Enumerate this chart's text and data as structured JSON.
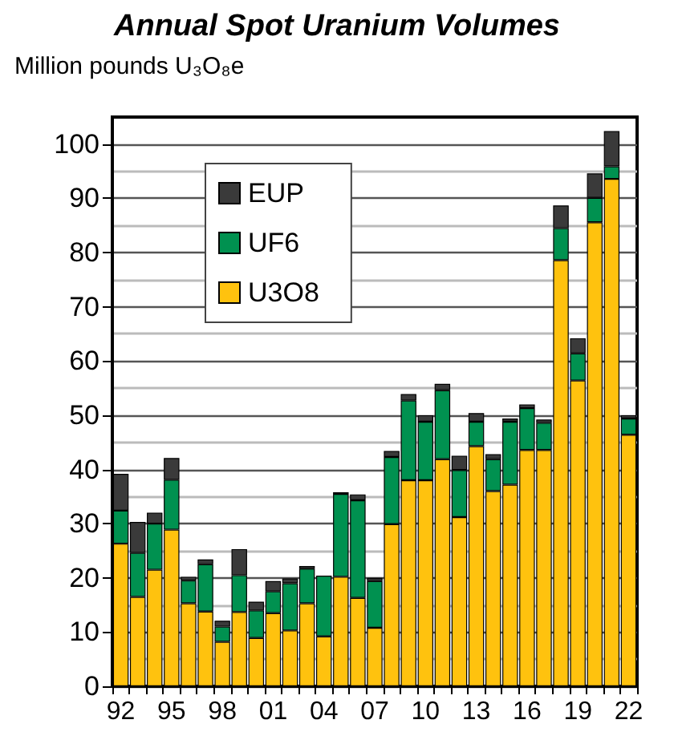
{
  "chart_data": {
    "type": "bar",
    "title": "Annual Spot Uranium Volumes",
    "subtitle": "Million pounds U₃O₈e",
    "categories": [
      "92",
      null,
      null,
      "95",
      null,
      null,
      "98",
      null,
      null,
      "01",
      null,
      null,
      "04",
      null,
      null,
      "07",
      null,
      null,
      "10",
      null,
      null,
      "13",
      null,
      null,
      "16",
      null,
      null,
      "19",
      null,
      null,
      "22"
    ],
    "stacked": true,
    "series": [
      {
        "name": "U3O8",
        "color": "#ffc20e",
        "values": [
          26.3,
          16.5,
          21.5,
          28.9,
          15.3,
          13.8,
          8.2,
          13.7,
          8.9,
          13.5,
          10.3,
          15.3,
          9.2,
          20.2,
          16.3,
          10.8,
          29.9,
          38.0,
          38.0,
          41.9,
          31.2,
          44.3,
          36.0,
          37.2,
          43.6,
          43.6,
          78.6,
          56.4,
          85.6,
          93.6,
          46.4
        ]
      },
      {
        "name": "UF6",
        "color": "#009150",
        "values": [
          6.1,
          8.1,
          8.5,
          9.2,
          4.2,
          8.7,
          2.8,
          6.8,
          5.1,
          4.0,
          8.7,
          6.4,
          11.2,
          15.3,
          18.0,
          8.6,
          12.4,
          14.7,
          10.8,
          12.7,
          8.7,
          4.5,
          5.9,
          11.6,
          7.7,
          5.0,
          5.9,
          5.0,
          4.5,
          2.3,
          3.0
        ]
      },
      {
        "name": "EUP",
        "color": "#3a3a3a",
        "values": [
          6.8,
          5.7,
          2.0,
          4.0,
          0.7,
          0.9,
          1.1,
          4.8,
          1.6,
          1.9,
          0.9,
          0.5,
          null,
          0.3,
          1.1,
          0.6,
          1.1,
          1.2,
          1.2,
          1.2,
          2.6,
          1.6,
          0.9,
          0.6,
          0.7,
          0.6,
          4.2,
          2.8,
          4.5,
          6.5,
          0.6
        ]
      }
    ],
    "ylim": [
      0,
      105
    ],
    "yticks": [
      0,
      10,
      20,
      30,
      40,
      50,
      60,
      70,
      80,
      90,
      100
    ],
    "grid": true,
    "legend": "top left"
  }
}
